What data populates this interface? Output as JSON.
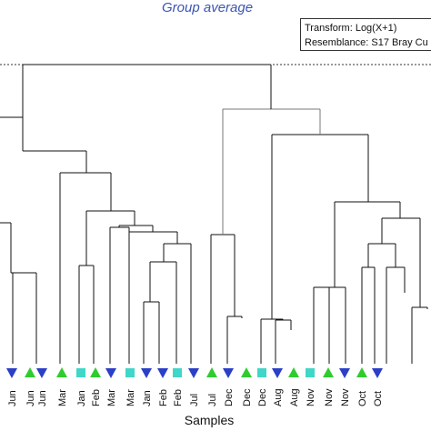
{
  "title": "Group average",
  "legend": {
    "transform": "Transform: Log(X+1)",
    "resemblance": "Resemblance: S17 Bray Cu"
  },
  "xlabel": "Samples",
  "colors": {
    "tri_down": "#2b3fc8",
    "tri_up": "#2fcc2f",
    "square": "#40d6c8",
    "line_dark": "#111111",
    "line_gray": "#777777"
  },
  "samples": [
    {
      "label": "Jun",
      "marker": "tri_down"
    },
    {
      "label": "Jun",
      "marker": "tri_up"
    },
    {
      "label": "Jun",
      "marker": "tri_down"
    },
    {
      "label": "Mar",
      "marker": "tri_up"
    },
    {
      "label": "Jan",
      "marker": "square"
    },
    {
      "label": "Feb",
      "marker": "tri_up"
    },
    {
      "label": "Mar",
      "marker": "tri_down"
    },
    {
      "label": "Mar",
      "marker": "square"
    },
    {
      "label": "Jan",
      "marker": "tri_down"
    },
    {
      "label": "Feb",
      "marker": "tri_down"
    },
    {
      "label": "Feb",
      "marker": "square"
    },
    {
      "label": "Jul",
      "marker": "tri_down"
    },
    {
      "label": "Jul",
      "marker": "tri_up"
    },
    {
      "label": "Dec",
      "marker": "tri_down"
    },
    {
      "label": "Dec",
      "marker": "tri_up"
    },
    {
      "label": "Dec",
      "marker": "square"
    },
    {
      "label": "Aug",
      "marker": "tri_down"
    },
    {
      "label": "Aug",
      "marker": "tri_up"
    },
    {
      "label": "Nov",
      "marker": "square"
    },
    {
      "label": "Nov",
      "marker": "tri_up"
    },
    {
      "label": "Nov",
      "marker": "tri_down"
    },
    {
      "label": "Oct",
      "marker": "tri_up"
    },
    {
      "label": "Oct",
      "marker": "tri_down"
    }
  ]
}
